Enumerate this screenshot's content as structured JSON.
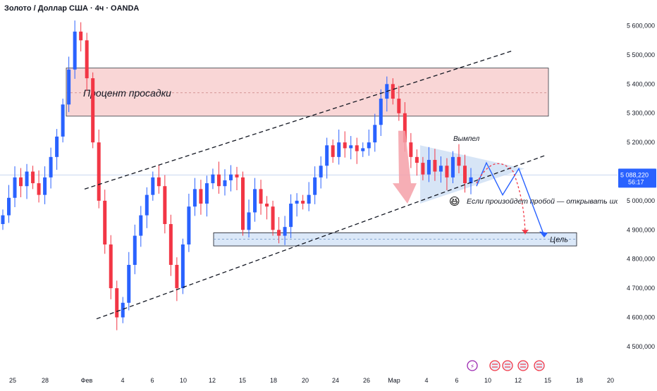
{
  "header": {
    "symbol_title": "Золото / Доллар США · 4ч · OANDA"
  },
  "colors": {
    "up": "#2962ff",
    "down": "#f23645",
    "zone_red": "#f8d0d0",
    "zone_blue": "#dbe8f8",
    "pennant": "#c9dcf3",
    "forecast_blue": "#2962ff",
    "forecast_red": "#f23645",
    "price_tag": "#2962ff",
    "grid_line": "#c8d7f0"
  },
  "chart_data": {
    "type": "candlestick",
    "ylim": [
      4420000,
      5640000
    ],
    "y_ticks": [
      "5 600,000",
      "5 500,000",
      "5 400,000",
      "5 300,000",
      "5 200,000",
      "5 000,000",
      "4 900,000",
      "4 800,000",
      "4 700,000",
      "4 600,000",
      "4 500,000"
    ],
    "y_tick_values": [
      5600000,
      5500000,
      5400000,
      5300000,
      5200000,
      5000000,
      4900000,
      4800000,
      4700000,
      4600000,
      4500000
    ],
    "x_ticks": [
      "25",
      "28",
      "Фев",
      "4",
      "6",
      "10",
      "12",
      "15",
      "18",
      "20",
      "24",
      "26",
      "Мар",
      "4",
      "6",
      "10",
      "12",
      "15",
      "18",
      "20"
    ],
    "current_price": "5 088,220",
    "countdown": "56:17",
    "price_series": [
      4950000,
      5010000,
      5080000,
      5050000,
      5100000,
      5060000,
      5020000,
      5080000,
      5150000,
      5220000,
      5330000,
      5450000,
      5580000,
      5550000,
      5420000,
      5200000,
      5000000,
      4850000,
      4700000,
      4600000,
      4650000,
      4780000,
      4880000,
      4950000,
      5020000,
      5080000,
      5050000,
      4920000,
      4780000,
      4700000,
      4850000,
      4980000,
      5040000,
      4990000,
      5060000,
      5090000,
      5050000,
      5070000,
      5090000,
      5080000,
      4900000,
      4960000,
      5040000,
      4990000,
      4980000,
      4900000,
      4880000,
      4910000,
      4990000,
      5000000,
      4990000,
      5020000,
      5080000,
      5120000,
      5190000,
      5150000,
      5200000,
      5180000,
      5190000,
      5170000,
      5180000,
      5200000,
      5260000,
      5350000,
      5400000,
      5350000,
      5300000,
      5200000,
      5150000,
      5130000,
      5090000,
      5140000,
      5100000,
      5120000,
      5080000,
      5150000,
      5120000,
      5060000,
      5080000
    ],
    "zones": [
      {
        "label": "Процент просадки",
        "price_top": 5455000,
        "price_bottom": 5290000,
        "mid": 5370000
      },
      {
        "label": "Цель",
        "price_top": 4890000,
        "price_bottom": 4845000,
        "mid": 4868000
      }
    ],
    "annotations": {
      "pennant_label": "Вымпел",
      "breakout_note": "Если произойдет пробой — открывать шорт",
      "emoji": "😆"
    },
    "grid": false
  }
}
